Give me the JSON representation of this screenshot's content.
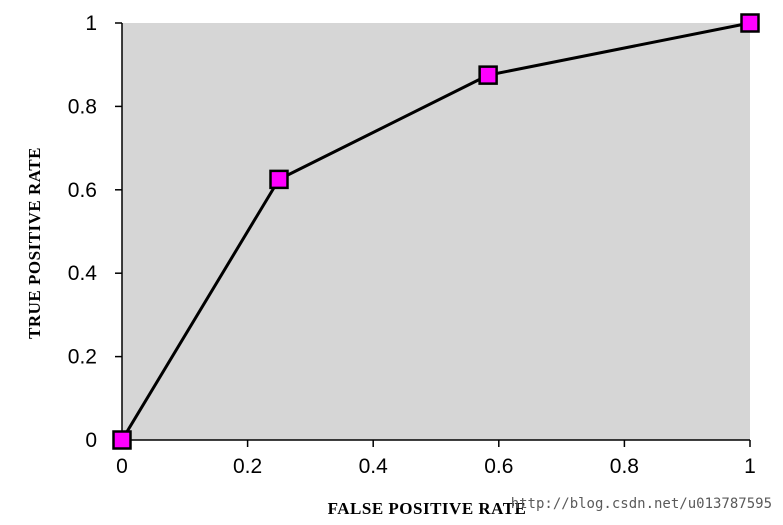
{
  "chart_data": {
    "type": "line",
    "xlabel": "FALSE  POSITIVE  RATE",
    "ylabel": "TRUE  POSITIVE  RATE",
    "xlim": [
      0,
      1
    ],
    "ylim": [
      0,
      1
    ],
    "x_ticks": [
      0,
      0.2,
      0.4,
      0.6,
      0.8,
      1
    ],
    "y_ticks": [
      0,
      0.2,
      0.4,
      0.6,
      0.8,
      1
    ],
    "x_tick_labels": [
      "0",
      "0.2",
      "0.4",
      "0.6",
      "0.8",
      "1"
    ],
    "y_tick_labels": [
      "0",
      "0.2",
      "0.4",
      "0.6",
      "0.8",
      "1"
    ],
    "grid": false,
    "legend": "none",
    "series": [
      {
        "x": [
          0,
          0.25,
          0.583,
          1
        ],
        "y": [
          0,
          0.625,
          0.875,
          1
        ],
        "marker": "square",
        "marker_color": "#ff00ff",
        "line_color": "#000000"
      }
    ],
    "plot_background": "#d6d6d6",
    "watermark": "http://blog.csdn.net/u013787595"
  }
}
